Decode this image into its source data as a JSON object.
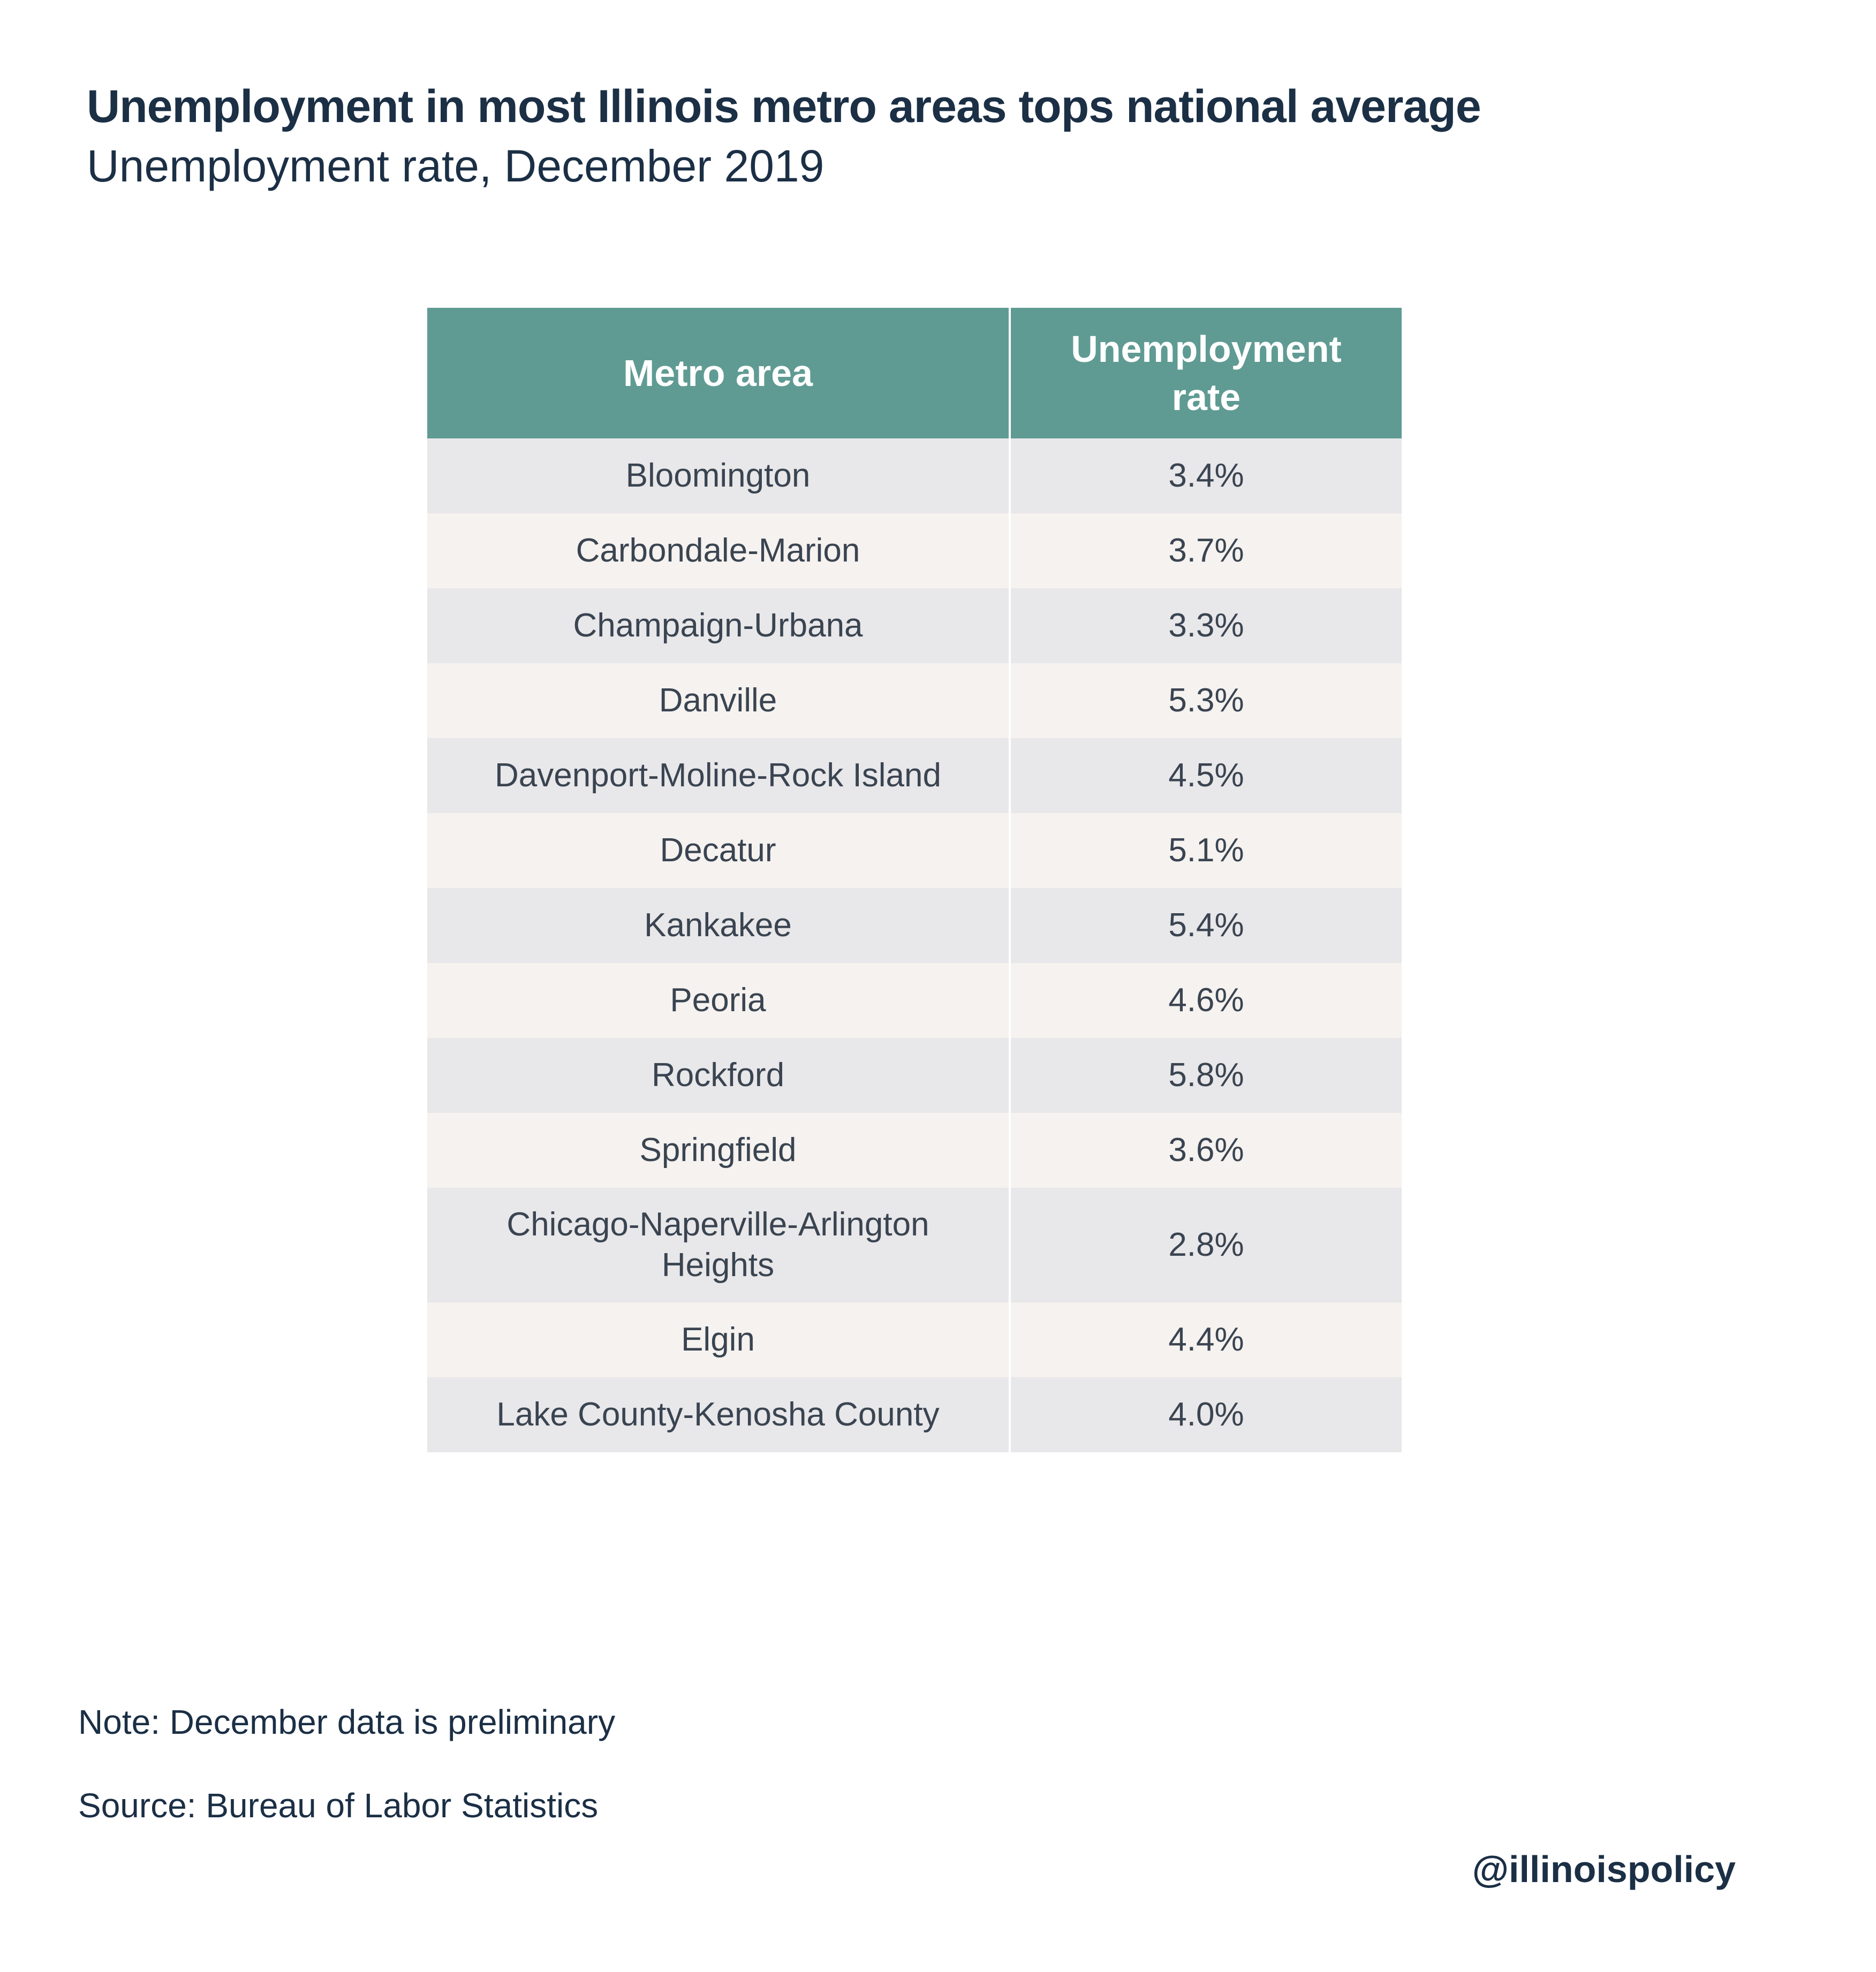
{
  "title": "Unemployment in most Illinois metro areas tops national average",
  "subtitle": "Unemployment rate, December 2019",
  "note": "Note: December data is preliminary",
  "source": "Source: Bureau of Labor Statistics",
  "handle": "@illinoispolicy",
  "colors": {
    "header_bg": "#5f9b93",
    "row_odd": "#e8e7e9",
    "row_even": "#f5f2ef",
    "text_dark": "#1b2f45"
  },
  "chart_data": {
    "type": "table",
    "title": "Unemployment in most Illinois metro areas tops national average",
    "subtitle": "Unemployment rate, December 2019",
    "columns": [
      "Metro area",
      "Unemployment rate"
    ],
    "rows": [
      {
        "metro": "Bloomington",
        "rate": "3.4%"
      },
      {
        "metro": "Carbondale-Marion",
        "rate": "3.7%"
      },
      {
        "metro": "Champaign-Urbana",
        "rate": "3.3%"
      },
      {
        "metro": "Danville",
        "rate": "5.3%"
      },
      {
        "metro": "Davenport-Moline-Rock Island",
        "rate": "4.5%"
      },
      {
        "metro": "Decatur",
        "rate": "5.1%"
      },
      {
        "metro": "Kankakee",
        "rate": "5.4%"
      },
      {
        "metro": "Peoria",
        "rate": "4.6%"
      },
      {
        "metro": "Rockford",
        "rate": "5.8%"
      },
      {
        "metro": "Springfield",
        "rate": "3.6%"
      },
      {
        "metro": "Chicago-Naperville-Arlington Heights",
        "rate": "2.8%"
      },
      {
        "metro": "Elgin",
        "rate": "4.4%"
      },
      {
        "metro": "Lake County-Kenosha County",
        "rate": "4.0%"
      }
    ]
  }
}
